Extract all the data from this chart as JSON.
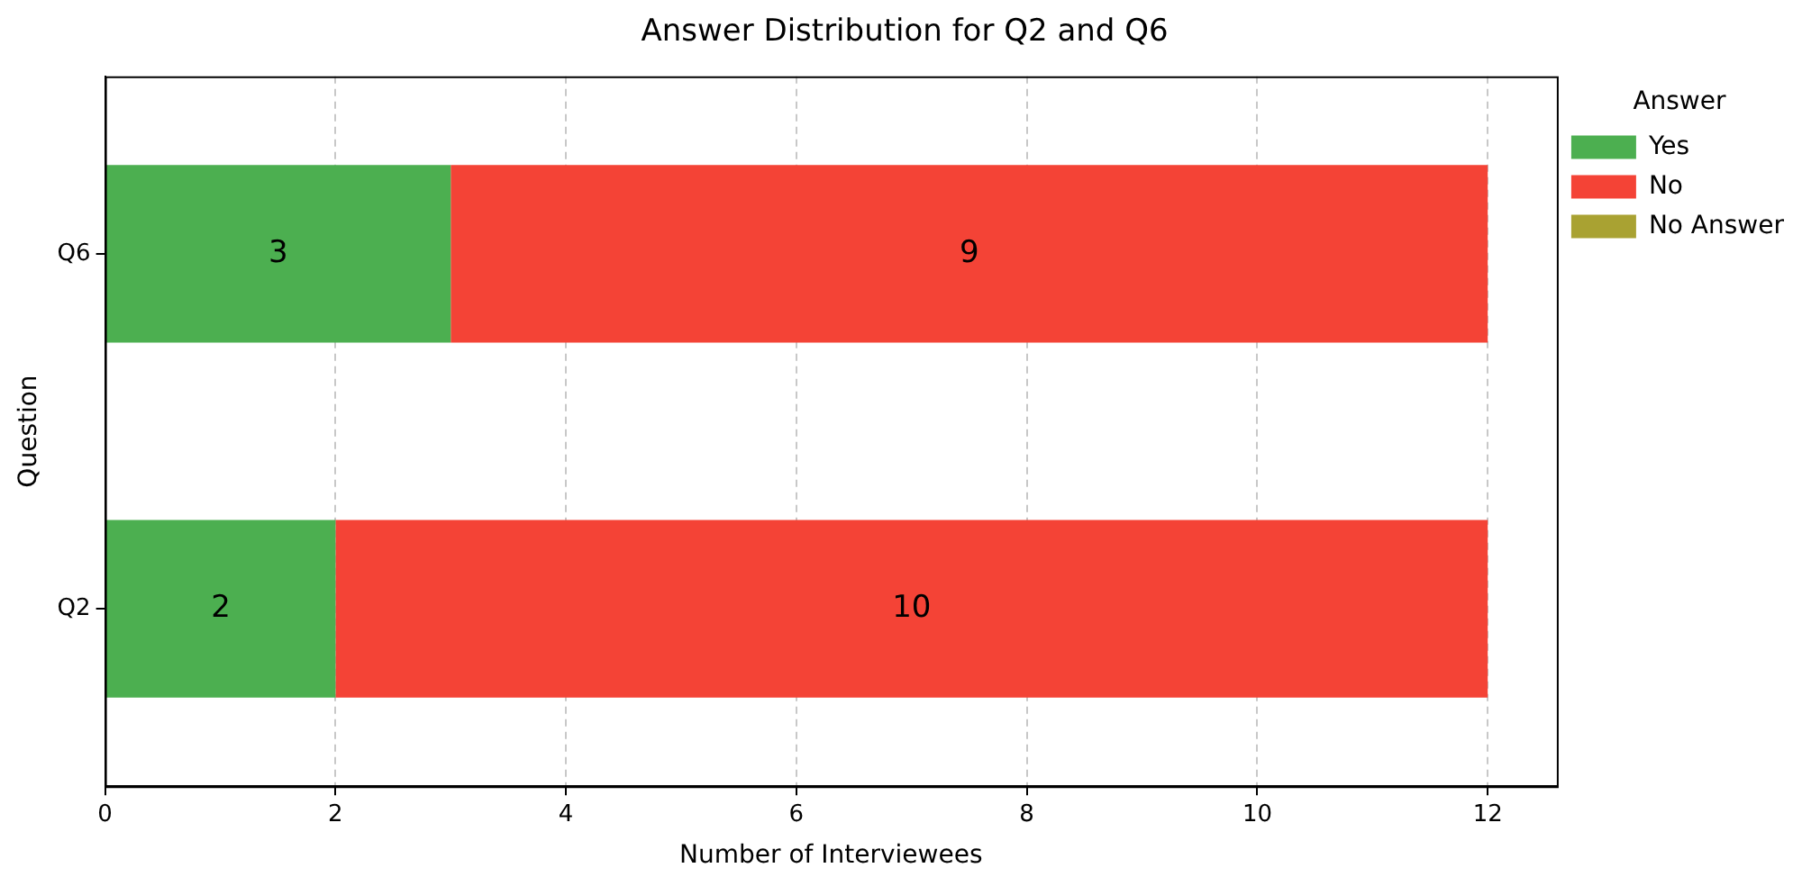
{
  "chart_data": {
    "type": "bar",
    "orientation": "horizontal",
    "stacked": true,
    "title": "Answer Distribution for Q2 and Q6",
    "xlabel": "Number of Interviewees",
    "ylabel": "Question",
    "legend_title": "Answer",
    "categories": [
      "Q6",
      "Q2"
    ],
    "series": [
      {
        "name": "Yes",
        "color": "#4caf50",
        "values": [
          3,
          2
        ],
        "value_labels": [
          "3",
          "2"
        ]
      },
      {
        "name": "No",
        "color": "#f44336",
        "values": [
          9,
          10
        ],
        "value_labels": [
          "9",
          "10"
        ]
      },
      {
        "name": "No Answer",
        "color": "#a9a232",
        "values": [
          0,
          0
        ],
        "value_labels": [
          null,
          null
        ]
      }
    ],
    "xlim": [
      0,
      12.6
    ],
    "xticks": [
      0,
      2,
      4,
      6,
      8,
      10,
      12
    ],
    "grid": "x",
    "legend": "top right"
  }
}
